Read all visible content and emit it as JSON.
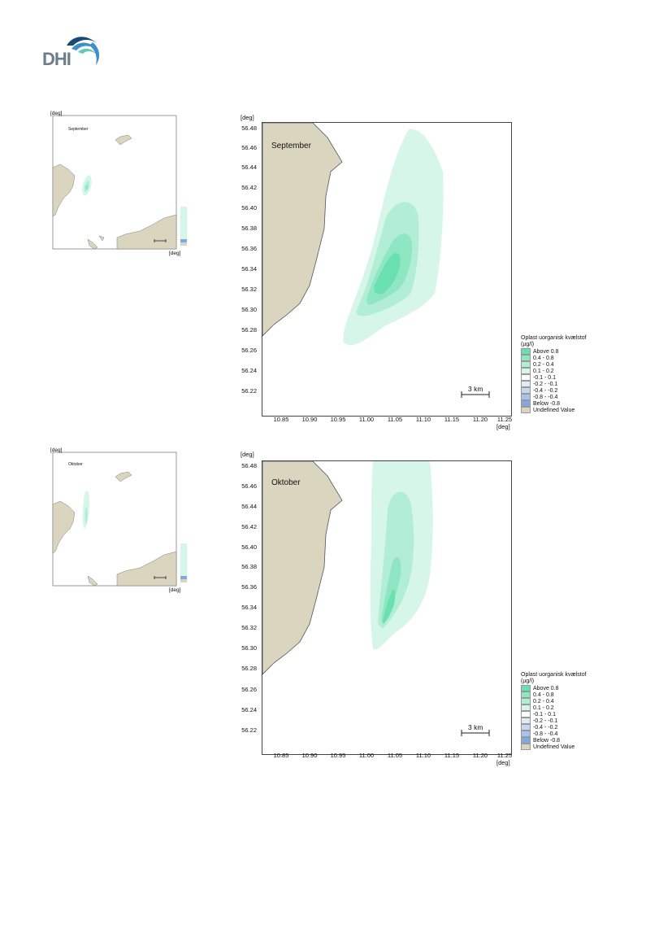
{
  "logo": {
    "text": "DHI",
    "colors": {
      "dark": "#1a4a73",
      "mid": "#3d8fc7",
      "light": "#63c9b5",
      "text": "#6d7d8c"
    }
  },
  "colors": {
    "land": "#d9d5be",
    "plume_low": "#d6f6ea",
    "plume_mid": "#b2eed5",
    "plume_high": "#8ee6c2",
    "plume_top": "#6adfaf"
  },
  "map_common": {
    "y_unit": "[deg]",
    "x_unit": "[deg]",
    "y_ticks": [
      "56.48",
      "56.46",
      "56.44",
      "56.42",
      "56.40",
      "56.38",
      "56.36",
      "56.34",
      "56.32",
      "56.30",
      "56.28",
      "56.26",
      "56.24",
      "56.22"
    ],
    "x_ticks": [
      "10.85",
      "10.90",
      "10.95",
      "11.00",
      "11.05",
      "11.10",
      "11.15",
      "11.20",
      "11.25"
    ],
    "scale_label": "3 km",
    "legend": {
      "title_line1": "Oplast uorganisk kvælstof",
      "title_line2": "(µg/l)",
      "items": [
        {
          "label": "Above  0.8",
          "color": "#6adfaf"
        },
        {
          "label": "0.4 -  0.8",
          "color": "#8ee6c2"
        },
        {
          "label": "0.2 -  0.4",
          "color": "#b2eed5"
        },
        {
          "label": "0.1 -  0.2",
          "color": "#d6f6ea"
        },
        {
          "label": "-0.1 -  0.1",
          "color": "#ffffff"
        },
        {
          "label": "-0.2 - -0.1",
          "color": "#e2eaf6"
        },
        {
          "label": "-0.4 - -0.2",
          "color": "#c6d7ef"
        },
        {
          "label": "-0.8 - -0.4",
          "color": "#a8c3e8"
        },
        {
          "label": "Below -0.8",
          "color": "#7fa9e0"
        },
        {
          "label": "Undefined Value",
          "color": "#d9d5be"
        }
      ]
    }
  },
  "panels": [
    {
      "month": "September"
    },
    {
      "month": "Oktober"
    }
  ]
}
